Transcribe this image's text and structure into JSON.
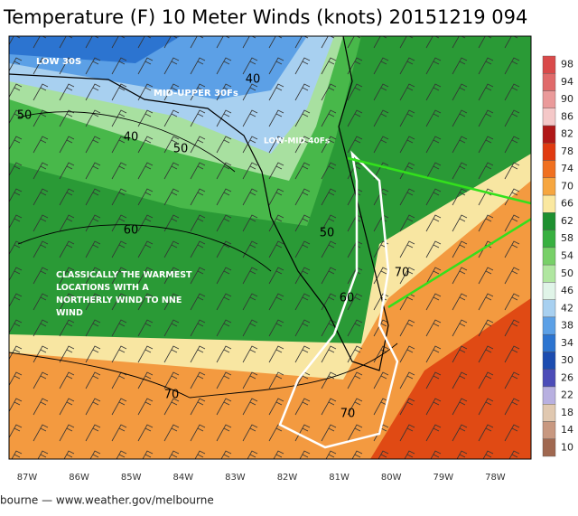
{
  "title": "Temperature (F) 10 Meter Winds (knots) 20151219 094",
  "annotations": [
    "LOW 30S",
    "MID-UPPER 30Fs",
    "LOW-MID 40Fs",
    "CLASSICALLY THE WARMEST LOCATIONS WITH A NORTHERLY WIND TO NNE WIND"
  ],
  "contour_labels": [
    "40",
    "50",
    "40",
    "50",
    "60",
    "50",
    "70",
    "60",
    "70",
    "70"
  ],
  "longitudes": [
    "87W",
    "86W",
    "85W",
    "84W",
    "83W",
    "82W",
    "81W",
    "80W",
    "79W",
    "78W"
  ],
  "colorbar": [
    {
      "value": 98,
      "color": "#d94a4a"
    },
    {
      "value": 94,
      "color": "#e06a6a"
    },
    {
      "value": 90,
      "color": "#ea9a9a"
    },
    {
      "value": 86,
      "color": "#f4c8c8"
    },
    {
      "value": 82,
      "color": "#b01818"
    },
    {
      "value": 78,
      "color": "#e03a10"
    },
    {
      "value": 74,
      "color": "#f07020"
    },
    {
      "value": 70,
      "color": "#f6a640"
    },
    {
      "value": 66,
      "color": "#fae8a0"
    },
    {
      "value": 62,
      "color": "#1e9030"
    },
    {
      "value": 58,
      "color": "#38b040"
    },
    {
      "value": 54,
      "color": "#78d068"
    },
    {
      "value": 50,
      "color": "#b0e6a0"
    },
    {
      "value": 46,
      "color": "#e0f4e8"
    },
    {
      "value": 42,
      "color": "#a8d0f0"
    },
    {
      "value": 38,
      "color": "#5ca0e6"
    },
    {
      "value": 34,
      "color": "#2c74d0"
    },
    {
      "value": 30,
      "color": "#1c4cb0"
    },
    {
      "value": 26,
      "color": "#4c4cb8"
    },
    {
      "value": 22,
      "color": "#b8b0e0"
    },
    {
      "value": 18,
      "color": "#e0c8b0"
    },
    {
      "value": 14,
      "color": "#c89880"
    },
    {
      "value": 10,
      "color": "#a06850"
    }
  ],
  "footer": "bourne — www.weather.gov/melbourne"
}
